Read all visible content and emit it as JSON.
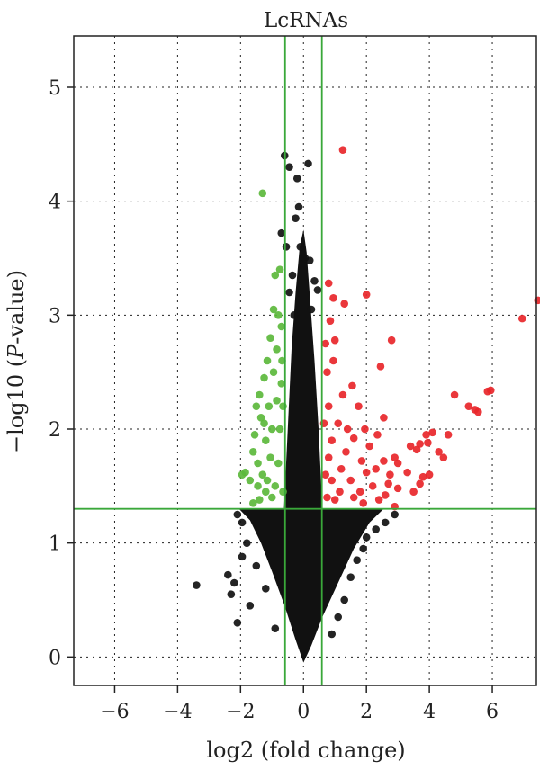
{
  "chart_data": {
    "type": "scatter",
    "subtype": "volcano",
    "title": "LcRNAs",
    "xlabel": "log2 (fold change)",
    "ylabel_prefix": "−log10 (",
    "ylabel_italic": "P",
    "ylabel_suffix": "-value)",
    "xlim": [
      -7.3,
      7.4
    ],
    "ylim": [
      -0.25,
      5.45
    ],
    "x_ticks": [
      -6,
      -4,
      -2,
      0,
      2,
      4,
      6
    ],
    "x_tick_labels": [
      "−6",
      "−4",
      "−2",
      "0",
      "2",
      "4",
      "6"
    ],
    "y_ticks": [
      0,
      1,
      2,
      3,
      4,
      5
    ],
    "y_tick_labels": [
      "0",
      "1",
      "2",
      "3",
      "4",
      "5"
    ],
    "grid": "dotted",
    "thresholds": {
      "log2fc": [
        -0.585,
        0.585
      ],
      "neglog10p": 1.3
    },
    "colors": {
      "up": "#e8262a",
      "down": "#5cb83c",
      "ns": "#111111",
      "threshold_line": "#3aa83a"
    },
    "series": [
      {
        "name": "up",
        "color": "#e8262a",
        "points": [
          [
            1.25,
            4.45
          ],
          [
            7.45,
            3.13
          ],
          [
            6.95,
            2.97
          ],
          [
            2.0,
            3.18
          ],
          [
            1.3,
            3.1
          ],
          [
            0.8,
            3.28
          ],
          [
            0.95,
            3.15
          ],
          [
            2.8,
            2.78
          ],
          [
            2.45,
            2.55
          ],
          [
            4.8,
            2.3
          ],
          [
            5.95,
            2.34
          ],
          [
            5.85,
            2.33
          ],
          [
            5.25,
            2.2
          ],
          [
            5.45,
            2.17
          ],
          [
            5.55,
            2.15
          ],
          [
            4.1,
            1.97
          ],
          [
            3.9,
            1.95
          ],
          [
            3.95,
            1.88
          ],
          [
            4.6,
            1.95
          ],
          [
            4.3,
            1.8
          ],
          [
            4.45,
            1.75
          ],
          [
            3.7,
            1.87
          ],
          [
            3.4,
            1.85
          ],
          [
            3.6,
            1.82
          ],
          [
            2.9,
            1.75
          ],
          [
            3.0,
            1.7
          ],
          [
            2.75,
            1.6
          ],
          [
            2.55,
            1.72
          ],
          [
            3.3,
            1.62
          ],
          [
            3.8,
            1.58
          ],
          [
            4.0,
            1.6
          ],
          [
            1.85,
            1.72
          ],
          [
            1.6,
            1.92
          ],
          [
            2.1,
            1.85
          ],
          [
            2.55,
            2.1
          ],
          [
            1.75,
            2.2
          ],
          [
            1.55,
            2.38
          ],
          [
            1.25,
            2.3
          ],
          [
            1.1,
            2.05
          ],
          [
            1.4,
            2.0
          ],
          [
            0.95,
            2.6
          ],
          [
            1.0,
            2.78
          ],
          [
            0.85,
            2.95
          ],
          [
            0.75,
            2.5
          ],
          [
            0.7,
            2.75
          ],
          [
            0.8,
            2.2
          ],
          [
            0.9,
            1.9
          ],
          [
            1.2,
            1.65
          ],
          [
            1.5,
            1.55
          ],
          [
            1.8,
            1.45
          ],
          [
            2.2,
            1.5
          ],
          [
            2.6,
            1.42
          ],
          [
            3.0,
            1.48
          ],
          [
            2.4,
            1.38
          ],
          [
            3.5,
            1.45
          ],
          [
            3.7,
            1.52
          ],
          [
            2.9,
            1.32
          ],
          [
            0.7,
            1.6
          ],
          [
            0.75,
            1.4
          ],
          [
            1.0,
            1.38
          ],
          [
            0.65,
            2.05
          ],
          [
            0.9,
            1.55
          ],
          [
            1.15,
            1.45
          ],
          [
            1.35,
            1.8
          ],
          [
            0.8,
            1.75
          ],
          [
            2.0,
            1.62
          ],
          [
            2.3,
            1.65
          ],
          [
            2.7,
            1.52
          ],
          [
            1.9,
            1.35
          ],
          [
            1.6,
            1.4
          ],
          [
            1.95,
            2.0
          ],
          [
            2.35,
            1.95
          ]
        ]
      },
      {
        "name": "down",
        "color": "#5cb83c",
        "points": [
          [
            -1.3,
            4.07
          ],
          [
            -0.9,
            3.35
          ],
          [
            -0.75,
            3.4
          ],
          [
            -0.8,
            3.0
          ],
          [
            -0.95,
            3.05
          ],
          [
            -1.05,
            2.8
          ],
          [
            -1.15,
            2.6
          ],
          [
            -1.25,
            2.45
          ],
          [
            -1.4,
            2.3
          ],
          [
            -1.35,
            2.1
          ],
          [
            -1.5,
            2.2
          ],
          [
            -1.55,
            1.95
          ],
          [
            -1.6,
            1.8
          ],
          [
            -1.7,
            1.55
          ],
          [
            -1.85,
            1.62
          ],
          [
            -1.95,
            1.6
          ],
          [
            -1.45,
            1.7
          ],
          [
            -1.2,
            1.9
          ],
          [
            -1.1,
            2.2
          ],
          [
            -0.95,
            2.5
          ],
          [
            -0.85,
            2.7
          ],
          [
            -0.7,
            2.9
          ],
          [
            -0.7,
            2.4
          ],
          [
            -0.75,
            2.0
          ],
          [
            -0.8,
            1.7
          ],
          [
            -0.9,
            1.5
          ],
          [
            -1.0,
            1.4
          ],
          [
            -1.2,
            1.45
          ],
          [
            -1.4,
            1.38
          ],
          [
            -1.6,
            1.35
          ],
          [
            -1.3,
            1.6
          ],
          [
            -1.05,
            1.75
          ],
          [
            -0.65,
            1.45
          ],
          [
            -0.65,
            2.2
          ],
          [
            -0.68,
            2.6
          ],
          [
            -1.0,
            2.0
          ],
          [
            -1.25,
            2.05
          ],
          [
            -1.45,
            1.5
          ],
          [
            -0.85,
            2.25
          ],
          [
            -1.15,
            1.55
          ]
        ]
      },
      {
        "name": "ns",
        "color": "#111111",
        "points": [
          [
            -0.6,
            4.4
          ],
          [
            -0.45,
            4.3
          ],
          [
            0.15,
            4.33
          ],
          [
            -0.2,
            4.2
          ],
          [
            -0.15,
            3.95
          ],
          [
            -0.25,
            3.85
          ],
          [
            -0.7,
            3.72
          ],
          [
            -0.55,
            3.6
          ],
          [
            -0.1,
            3.6
          ],
          [
            0.05,
            3.5
          ],
          [
            0.2,
            3.48
          ],
          [
            -0.35,
            3.35
          ],
          [
            0.35,
            3.3
          ],
          [
            0.45,
            3.22
          ],
          [
            -0.45,
            3.2
          ],
          [
            0.25,
            3.05
          ],
          [
            -0.3,
            3.0
          ],
          [
            2.9,
            1.25
          ],
          [
            2.6,
            1.18
          ],
          [
            2.3,
            1.12
          ],
          [
            2.0,
            1.05
          ],
          [
            1.9,
            0.95
          ],
          [
            1.7,
            0.85
          ],
          [
            1.5,
            0.7
          ],
          [
            -3.4,
            0.63
          ],
          [
            -2.4,
            0.72
          ],
          [
            -2.2,
            0.65
          ],
          [
            -1.95,
            0.88
          ],
          [
            -1.8,
            1.0
          ],
          [
            -1.95,
            1.18
          ],
          [
            -2.1,
            1.25
          ],
          [
            -2.3,
            0.55
          ],
          [
            -2.1,
            0.3
          ],
          [
            -1.7,
            0.45
          ],
          [
            -1.5,
            0.8
          ],
          [
            1.3,
            0.5
          ],
          [
            1.1,
            0.35
          ],
          [
            0.9,
            0.2
          ],
          [
            -0.9,
            0.25
          ],
          [
            -1.2,
            0.6
          ]
        ]
      }
    ]
  }
}
